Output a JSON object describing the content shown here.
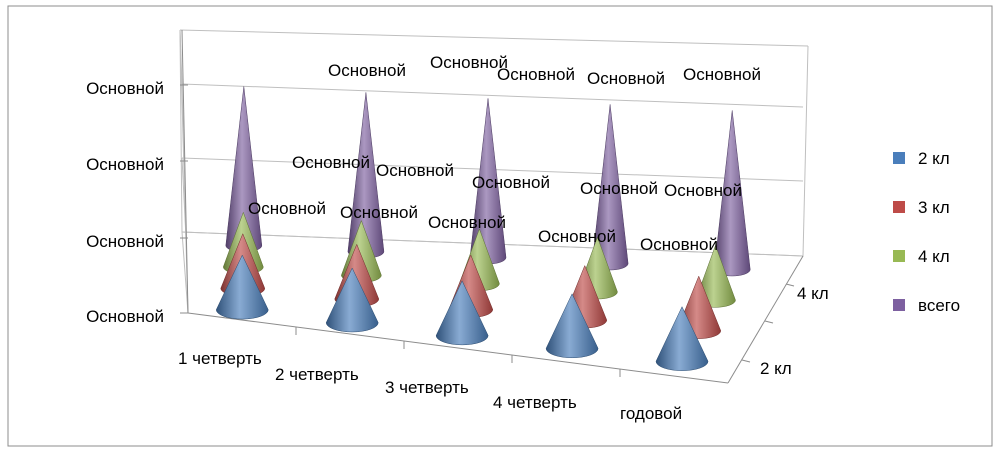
{
  "chart_data": {
    "type": "3d-cone",
    "categories": [
      "1 четверть",
      "2 четверть",
      "3 четверть",
      "4 четверть",
      "годовой"
    ],
    "series_axis_labels": [
      "2 кл",
      "4 кл"
    ],
    "z_tick_labels": [
      "Основной",
      "Основной",
      "Основной",
      "Основной"
    ],
    "series": [
      {
        "name": "2 кл",
        "color": "#4a7ebb",
        "values": [
          1,
          1,
          1,
          1,
          1
        ],
        "data_labels": [
          "",
          "",
          "",
          "",
          ""
        ]
      },
      {
        "name": "3 кл",
        "color": "#be4b48",
        "values": [
          1,
          1,
          1,
          1,
          1
        ],
        "data_labels": [
          "Основной",
          "Основной",
          "Основной",
          "Основной",
          "Основной"
        ]
      },
      {
        "name": "4 кл",
        "color": "#98b954",
        "values": [
          1,
          1,
          1,
          1,
          1
        ],
        "data_labels": [
          "Основной",
          "Основной",
          "Основной",
          "Основной",
          "Основной"
        ]
      },
      {
        "name": "всего",
        "color": "#7d60a0",
        "values": [
          3,
          3,
          3,
          3,
          3
        ],
        "data_labels": [
          "Основной",
          "Основной",
          "Основной",
          "Основной",
          "Основной"
        ]
      }
    ],
    "legend_position": "right",
    "grid": true
  }
}
